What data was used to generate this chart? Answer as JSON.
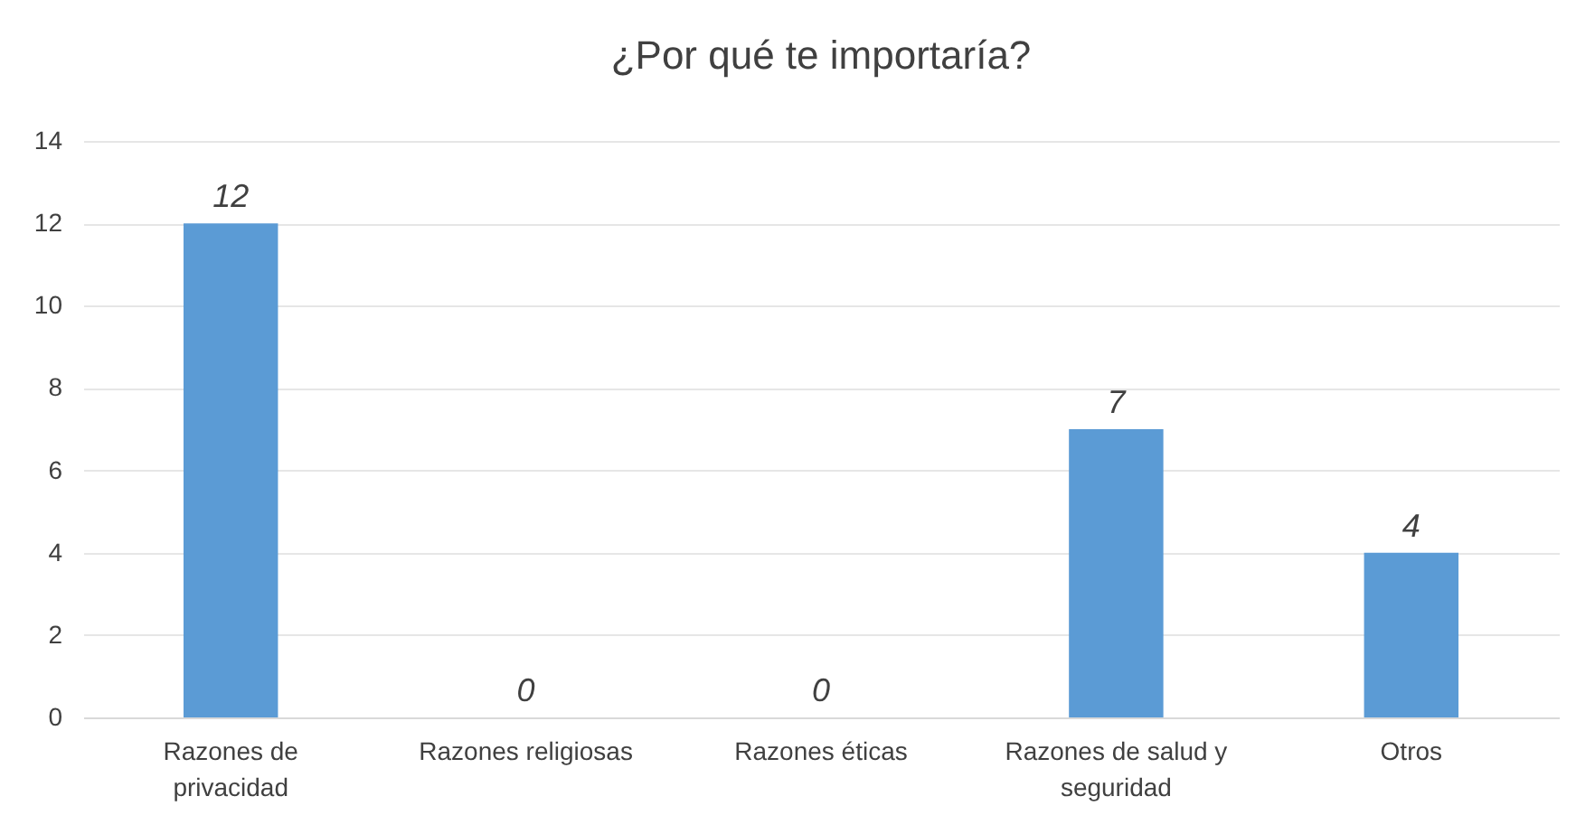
{
  "chart_data": {
    "type": "bar",
    "title": "¿Por qué te importaría?",
    "categories": [
      "Razones de privacidad",
      "Razones religiosas",
      "Razones éticas",
      "Razones de salud y seguridad",
      "Otros"
    ],
    "values": [
      12,
      0,
      0,
      7,
      4
    ],
    "color": "#5b9bd5",
    "ylim": [
      0,
      14
    ],
    "yticks": [
      0,
      2,
      4,
      6,
      8,
      10,
      12,
      14
    ],
    "grid": "y",
    "data_labels": true
  }
}
